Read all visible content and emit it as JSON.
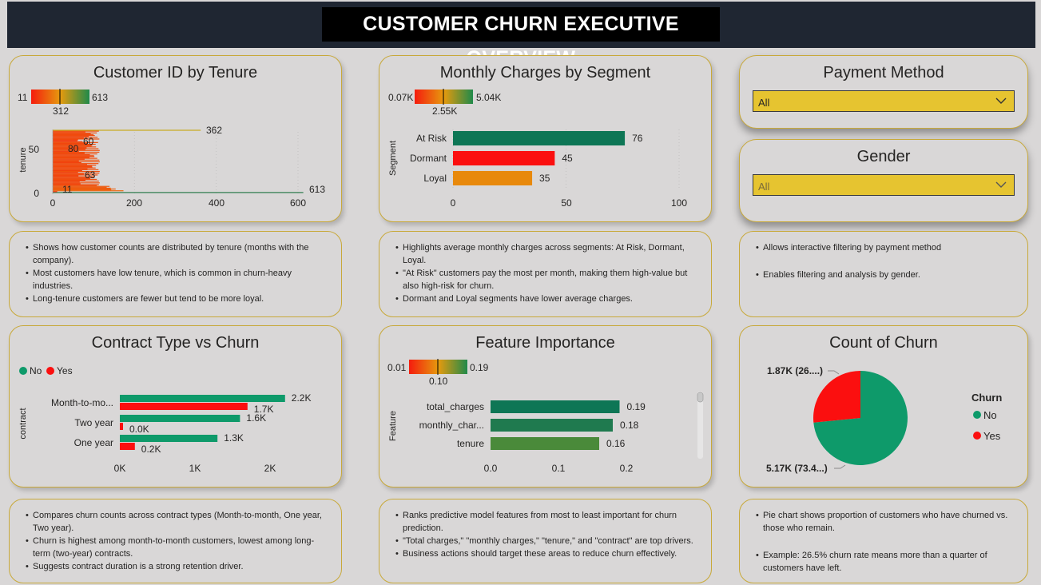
{
  "header": {
    "title": "CUSTOMER CHURN EXECUTIVE OVERVIEW"
  },
  "colors": {
    "green": "#0e9a6a",
    "dark_green": "#0e7655",
    "red": "#fb0f0f",
    "orange": "#e8890c",
    "olive": "#4a8a3a",
    "slicer_fill": "#e6c430",
    "border_gold": "#c8a93a",
    "header_bg": "#1f2632"
  },
  "tenure_card": {
    "title": "Customer ID by Tenure",
    "gradient_min": "11",
    "gradient_max": "613",
    "gradient_mid": "312",
    "ylabel": "tenure",
    "x_ticks": [
      "0",
      "200",
      "400",
      "600"
    ],
    "y_ticks": [
      "0",
      "50"
    ],
    "labels": [
      "362",
      "60",
      "80",
      "63",
      "11",
      "613"
    ]
  },
  "segment_card": {
    "title": "Monthly Charges by Segment",
    "gradient_min": "0.07K",
    "gradient_max": "5.04K",
    "gradient_mid": "2.55K",
    "ylabel": "Segment",
    "x_ticks": [
      "0",
      "50",
      "100"
    ]
  },
  "payment_slicer": {
    "title": "Payment Method",
    "value": "All"
  },
  "gender_slicer": {
    "title": "Gender",
    "value": "All"
  },
  "notes_tenure": [
    "Shows how customer counts are distributed by tenure (months with the company).",
    "Most customers have low tenure, which is common in churn-heavy industries.",
    "Long-tenure customers are fewer but tend to be more loyal."
  ],
  "notes_segment": [
    "Highlights average monthly charges across segments: At Risk, Dormant, Loyal.",
    "\"At Risk\" customers pay the most per month, making them high-value but also high-risk for churn.",
    "Dormant and Loyal segments have lower average charges."
  ],
  "notes_slicers": [
    "Allows interactive filtering by payment method",
    "Enables filtering and analysis by gender."
  ],
  "contract_card": {
    "title": "Contract Type vs Churn",
    "legend": [
      "No",
      "Yes"
    ],
    "ylabel": "contract",
    "x_ticks": [
      "0K",
      "1K",
      "2K"
    ]
  },
  "feature_card": {
    "title": "Feature Importance",
    "gradient_min": "0.01",
    "gradient_max": "0.19",
    "gradient_mid": "0.10",
    "ylabel": "Feature",
    "x_ticks": [
      "0.0",
      "0.1",
      "0.2"
    ]
  },
  "churn_card": {
    "title": "Count of Churn",
    "legend_title": "Churn",
    "legend": [
      "No",
      "Yes"
    ],
    "label_yes": "1.87K (26....)",
    "label_no": "5.17K (73.4...)"
  },
  "notes_contract": [
    "Compares churn counts across contract types (Month-to-month, One year, Two year).",
    "Churn is highest among month-to-month customers, lowest among long-term (two-year) contracts.",
    "Suggests contract duration is a strong retention driver."
  ],
  "notes_feature": [
    "Ranks predictive model features from most to least important for churn prediction.",
    "\"Total charges,\" \"monthly charges,\" \"tenure,\" and \"contract\" are top drivers.",
    "Business actions should target these areas to reduce churn effectively."
  ],
  "notes_churn": [
    "Pie chart shows proportion of customers who have churned vs. those who remain.",
    "Example: 26.5% churn rate means more than a quarter of customers have left."
  ],
  "chart_data": [
    {
      "type": "bar",
      "title": "Customer ID by Tenure",
      "xlabel": "",
      "ylabel": "tenure",
      "orientation": "horizontal",
      "xlim": [
        0,
        613
      ],
      "labeled_points": [
        {
          "tenure": 72,
          "count": 362
        },
        {
          "tenure": 60,
          "count": 60
        },
        {
          "tenure": 50,
          "count": 80
        },
        {
          "tenure": 20,
          "count": 63
        },
        {
          "tenure": 2,
          "count": 11
        },
        {
          "tenure": 1,
          "count": 613
        }
      ]
    },
    {
      "type": "bar",
      "title": "Monthly Charges by Segment",
      "ylabel": "Segment",
      "orientation": "horizontal",
      "categories": [
        "At Risk",
        "Dormant",
        "Loyal"
      ],
      "values": [
        76,
        45,
        35
      ],
      "xlim": [
        0,
        100
      ]
    },
    {
      "type": "bar",
      "title": "Contract Type vs Churn",
      "ylabel": "contract",
      "orientation": "horizontal",
      "categories": [
        "Month-to-mo...",
        "Two year",
        "One year"
      ],
      "series": [
        {
          "name": "No",
          "values": [
            2200,
            1600,
            1300
          ],
          "labels": [
            "2.2K",
            "1.6K",
            "1.3K"
          ]
        },
        {
          "name": "Yes",
          "values": [
            1700,
            0,
            200
          ],
          "labels": [
            "1.7K",
            "0.0K",
            "0.2K"
          ]
        }
      ],
      "xlim": [
        0,
        2500
      ]
    },
    {
      "type": "bar",
      "title": "Feature Importance",
      "ylabel": "Feature",
      "orientation": "horizontal",
      "categories": [
        "total_charges",
        "monthly_char...",
        "tenure"
      ],
      "values": [
        0.19,
        0.18,
        0.16
      ],
      "xlim": [
        0,
        0.24
      ]
    },
    {
      "type": "pie",
      "title": "Count of Churn",
      "categories": [
        "No",
        "Yes"
      ],
      "values": [
        5170,
        1870
      ],
      "labels": [
        "5.17K (73.4...)",
        "1.87K (26....)"
      ]
    }
  ]
}
